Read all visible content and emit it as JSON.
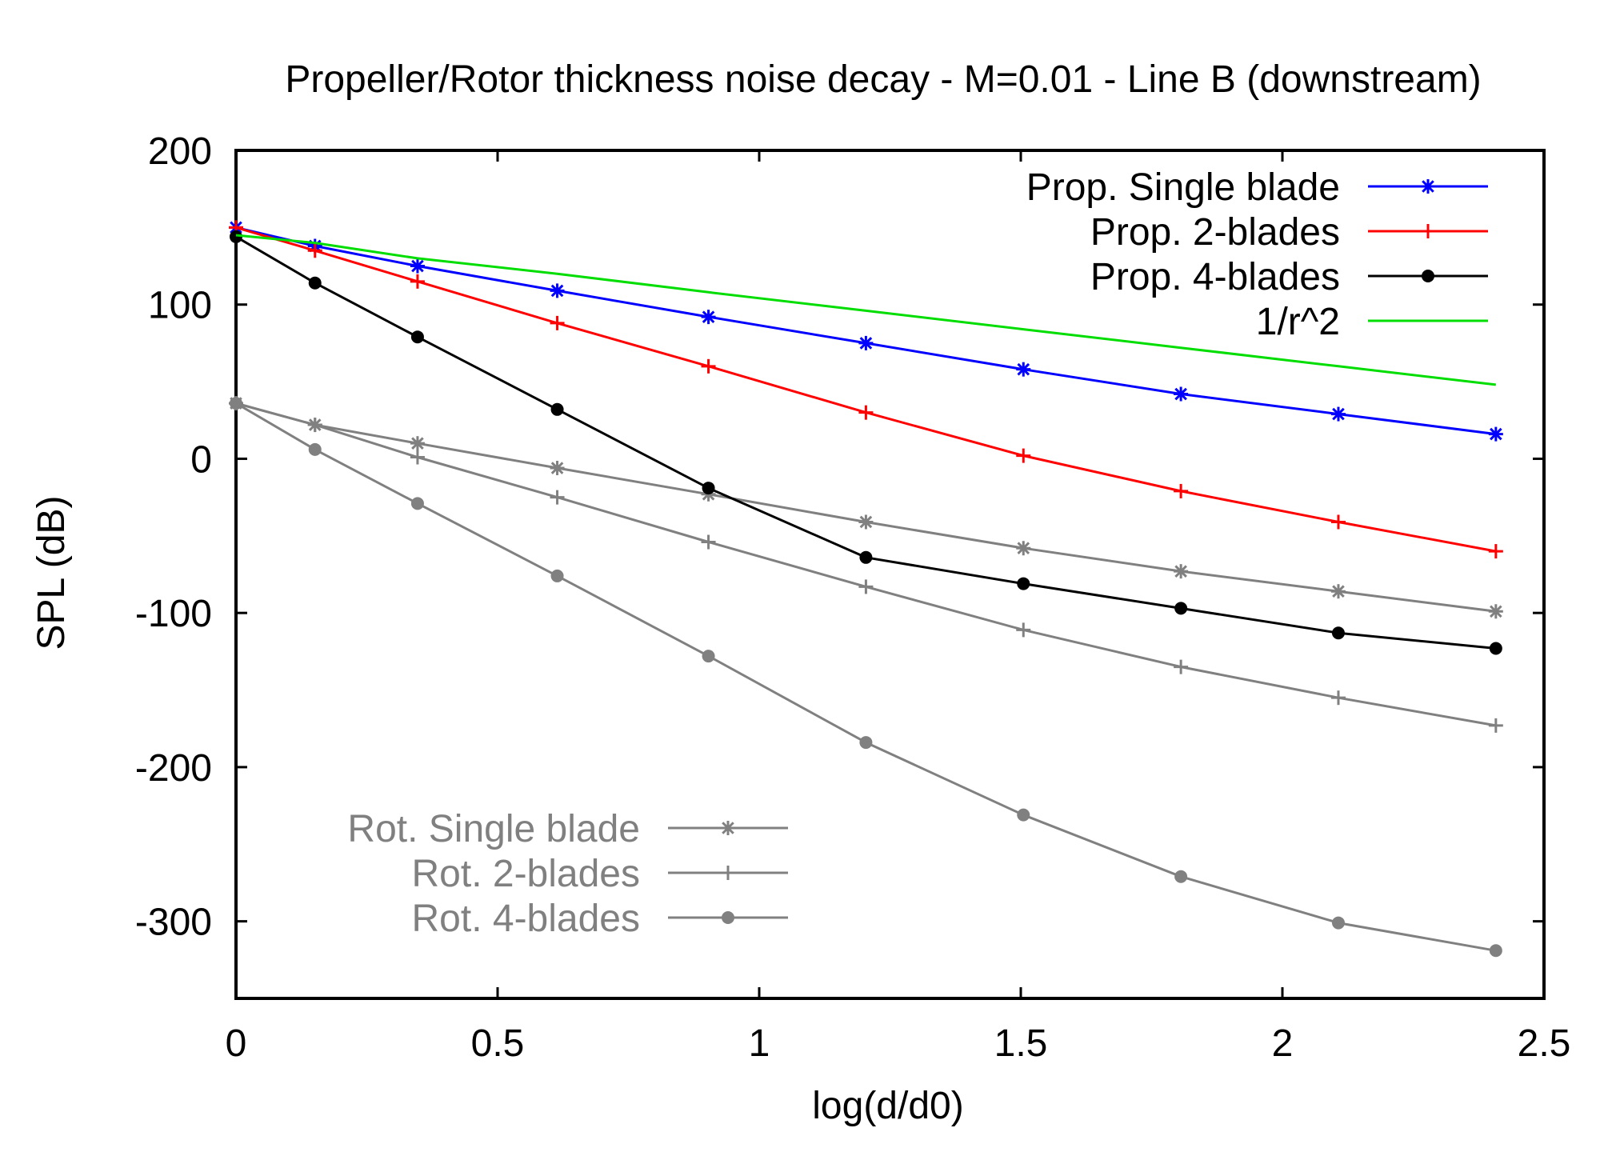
{
  "chart_data": {
    "type": "line",
    "title": "Propeller/Rotor thickness noise decay - M=0.01 - Line B (downstream)",
    "xlabel": "log(d/d0)",
    "ylabel": "SPL (dB)",
    "xlim": [
      0,
      2.5
    ],
    "ylim": [
      -350,
      200
    ],
    "xticks": [
      0,
      0.5,
      1,
      1.5,
      2,
      2.5
    ],
    "xtick_labels": [
      "0",
      "0.5",
      "1",
      "1.5",
      "2",
      "2.5"
    ],
    "yticks": [
      200,
      100,
      0,
      -100,
      -200,
      -300
    ],
    "ytick_labels": [
      "200",
      "100",
      "0",
      "-100",
      "-200",
      "-300"
    ],
    "grid": false,
    "legend_placement": [
      "top-right",
      "bottom-left"
    ],
    "x": [
      0,
      0.151,
      0.347,
      0.614,
      0.903,
      1.204,
      1.505,
      1.806,
      2.107,
      2.408
    ],
    "series": [
      {
        "name": "Prop. Single blade",
        "color": "#0000ff",
        "marker": "star",
        "legend_group": 0,
        "values": [
          150,
          138,
          125,
          109,
          92,
          75,
          58,
          42,
          29,
          16
        ]
      },
      {
        "name": "Prop. 2-blades",
        "color": "#ff0000",
        "marker": "plus",
        "legend_group": 0,
        "values": [
          150,
          135,
          115,
          88,
          60,
          30,
          2,
          -21,
          -41,
          -60
        ]
      },
      {
        "name": "Prop. 4-blades",
        "color": "#000000",
        "marker": "circle",
        "legend_group": 0,
        "values": [
          144,
          114,
          79,
          32,
          -19,
          -64,
          -81,
          -97,
          -113,
          -123
        ]
      },
      {
        "name": "1/r^2",
        "color": "#00dd00",
        "marker": "none",
        "legend_group": 0,
        "values": [
          145,
          140,
          130,
          120,
          108,
          96,
          84,
          72,
          60,
          48
        ]
      },
      {
        "name": "Rot. Single blade",
        "color": "#808080",
        "marker": "star",
        "legend_group": 1,
        "values": [
          36,
          22,
          10,
          -6,
          -23,
          -41,
          -58,
          -73,
          -86,
          -99
        ]
      },
      {
        "name": "Rot. 2-blades",
        "color": "#808080",
        "marker": "plus",
        "legend_group": 1,
        "values": [
          36,
          22,
          1,
          -25,
          -54,
          -83,
          -111,
          -135,
          -155,
          -173
        ]
      },
      {
        "name": "Rot. 4-blades",
        "color": "#808080",
        "marker": "circle",
        "legend_group": 1,
        "values": [
          36,
          6,
          -29,
          -76,
          -128,
          -184,
          -231,
          -271,
          -301,
          -319
        ]
      }
    ]
  }
}
